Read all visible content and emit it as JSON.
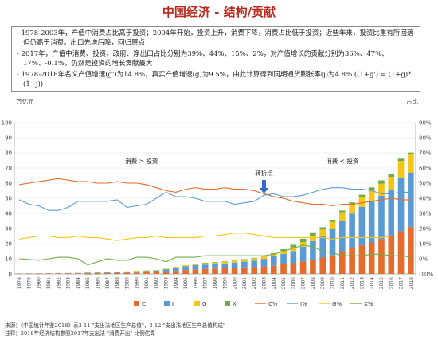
{
  "title": "中国经济 - 结构/贡献",
  "notes": [
    "- 1978-2003年，产值中消费占比高于投资；2004年开始，投资上升，消费下降，消费占比低于投资；近些年来，投资比重有所回落但仍高于消费。出口先增后降，回归原点",
    "- 2017年，产值中消费、投资、政府、净出口占比分别为39%、44%、15%、2%，对产值增长的贡献分别为36%、47%、17%、-0.1%，仍然是投资的增长贡献最大",
    "- 1978-2018年名义产值增速(g')为14.8%，真实产值增速(g)为9.5%，由此计算得到同期通货膨胀率(j)为4.8% ((1+g') = (1+g)*(1+j))"
  ],
  "source_lines": [
    "来源：《中国统计年鉴2018》表3-11 \"支出法地区生产总值\"，3-12 \"支出法地区生产总值构成\"",
    "注释：2018年经济结构参照2017年支出法 \"消费开出\" 比例估算"
  ],
  "chart_data": {
    "type": "bar+line",
    "left_axis": {
      "label": "万亿元",
      "range": [
        0,
        100
      ],
      "ticks": [
        0,
        10,
        20,
        30,
        40,
        50,
        60,
        70,
        80,
        90,
        100
      ]
    },
    "right_axis": {
      "label": "占比",
      "range": [
        -10,
        90
      ],
      "ticks": [
        "-10%",
        "0%",
        "10%",
        "20%",
        "30%",
        "40%",
        "50%",
        "60%",
        "70%",
        "80%",
        "90%"
      ]
    },
    "x": [
      1978,
      1979,
      1980,
      1981,
      1982,
      1983,
      1984,
      1985,
      1986,
      1987,
      1988,
      1989,
      1990,
      1991,
      1992,
      1993,
      1994,
      1995,
      1996,
      1997,
      1998,
      1999,
      2000,
      2001,
      2002,
      2003,
      2004,
      2005,
      2006,
      2007,
      2008,
      2009,
      2010,
      2011,
      2012,
      2013,
      2014,
      2015,
      2016,
      2017,
      2018
    ],
    "bar_series": [
      {
        "name": "C",
        "color": "#e46c2c",
        "values": [
          0.18,
          0.21,
          0.23,
          0.26,
          0.28,
          0.31,
          0.37,
          0.46,
          0.53,
          0.6,
          0.76,
          0.88,
          0.94,
          1.05,
          1.23,
          1.52,
          2.04,
          2.57,
          3.01,
          3.3,
          3.5,
          3.77,
          4.09,
          4.35,
          4.64,
          4.94,
          5.46,
          6.3,
          7.1,
          8.2,
          9.5,
          10.8,
          12.3,
          15.0,
          17.0,
          18.9,
          20.8,
          23.1,
          25.5,
          28.2,
          31.0
        ]
      },
      {
        "name": "I",
        "color": "#5b9bd5",
        "values": [
          0.14,
          0.15,
          0.16,
          0.16,
          0.18,
          0.21,
          0.27,
          0.36,
          0.41,
          0.46,
          0.58,
          0.61,
          0.65,
          0.79,
          1.04,
          1.58,
          1.99,
          2.49,
          2.78,
          2.89,
          3.03,
          3.16,
          3.42,
          3.77,
          4.16,
          4.99,
          6.14,
          6.88,
          7.99,
          9.8,
          12.2,
          14.5,
          17.5,
          20.4,
          22.9,
          25.4,
          27.5,
          28.5,
          29.8,
          35.6,
          36.0
        ]
      },
      {
        "name": "G",
        "color": "#f5c518",
        "values": [
          0.05,
          0.06,
          0.07,
          0.07,
          0.08,
          0.09,
          0.11,
          0.13,
          0.15,
          0.17,
          0.2,
          0.24,
          0.26,
          0.3,
          0.35,
          0.45,
          0.58,
          0.67,
          0.79,
          0.9,
          1.0,
          1.13,
          1.3,
          1.42,
          1.51,
          1.6,
          1.8,
          2.1,
          2.5,
          2.9,
          3.4,
          4.0,
          4.5,
          5.3,
          5.9,
          6.6,
          7.2,
          8.0,
          8.9,
          10.9,
          12.2
        ]
      },
      {
        "name": "X",
        "color": "#70ad47",
        "values": [
          -0.01,
          -0.02,
          -0.02,
          0.0,
          0.05,
          0.03,
          0.0,
          -0.37,
          -0.26,
          -0.03,
          -0.13,
          -0.11,
          0.15,
          0.16,
          0.03,
          -0.18,
          0.06,
          0.1,
          0.15,
          0.32,
          0.35,
          0.25,
          0.22,
          0.22,
          0.31,
          0.27,
          0.39,
          1.02,
          1.67,
          2.34,
          2.41,
          1.52,
          1.51,
          1.22,
          1.46,
          1.42,
          1.71,
          2.25,
          1.64,
          1.47,
          1.0
        ]
      }
    ],
    "line_series": [
      {
        "name": "C%",
        "color": "#e46c2c",
        "values": [
          49,
          50,
          51,
          52,
          53,
          52,
          51,
          51,
          50,
          50,
          51,
          50,
          50,
          49,
          47,
          45,
          44,
          46,
          47,
          46,
          46,
          47,
          46,
          46,
          45,
          43,
          41,
          40,
          38,
          37,
          36,
          36,
          35,
          36,
          36,
          37,
          38,
          39,
          40,
          39,
          39
        ]
      },
      {
        "name": "I%",
        "color": "#5b9bd5",
        "values": [
          39,
          36,
          35,
          32,
          32,
          34,
          38,
          38,
          38,
          38,
          39,
          34,
          35,
          36,
          40,
          44,
          41,
          41,
          40,
          38,
          38,
          38,
          36,
          37,
          38,
          42,
          43,
          41,
          41,
          42,
          44,
          46,
          47,
          47,
          46,
          46,
          45,
          43,
          43,
          44,
          44
        ]
      },
      {
        "name": "G%",
        "color": "#f5c518",
        "values": [
          13,
          14,
          15,
          15,
          14,
          14,
          15,
          14,
          14,
          13,
          12,
          13,
          14,
          14,
          15,
          14,
          14,
          14,
          14,
          15,
          15,
          16,
          17,
          17,
          16,
          15,
          14,
          14,
          14,
          14,
          14,
          14,
          13,
          14,
          14,
          14,
          14,
          14,
          15,
          15,
          15
        ]
      },
      {
        "name": "X%",
        "color": "#70ad47",
        "values": [
          0,
          -0.5,
          -1,
          0,
          1,
          1,
          0,
          -4,
          -2,
          0,
          -1,
          -1,
          1,
          1,
          0,
          -2,
          1,
          1,
          1,
          2,
          2,
          2,
          2,
          2,
          2,
          2,
          3,
          5,
          7,
          9,
          8,
          5,
          4,
          2,
          2,
          2,
          3,
          3,
          2,
          2,
          1
        ]
      }
    ],
    "annotations": [
      {
        "text": "消费 > 投资",
        "x_range": [
          1979,
          2002
        ]
      },
      {
        "text": "转折点",
        "x": 2003
      },
      {
        "text": "消费 < 投资",
        "x_range": [
          2005,
          2017
        ]
      }
    ],
    "legend_position": "bottom",
    "grid": true
  }
}
